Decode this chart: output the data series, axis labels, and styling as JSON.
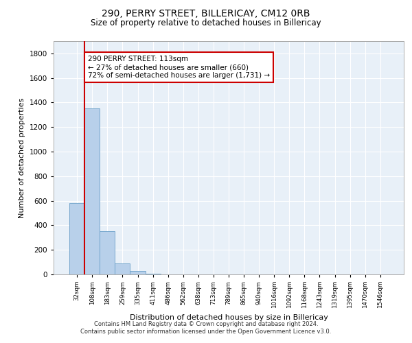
{
  "title": "290, PERRY STREET, BILLERICAY, CM12 0RB",
  "subtitle": "Size of property relative to detached houses in Billericay",
  "xlabel": "Distribution of detached houses by size in Billericay",
  "ylabel": "Number of detached properties",
  "bar_labels": [
    "32sqm",
    "108sqm",
    "183sqm",
    "259sqm",
    "335sqm",
    "411sqm",
    "486sqm",
    "562sqm",
    "638sqm",
    "713sqm",
    "789sqm",
    "865sqm",
    "940sqm",
    "1016sqm",
    "1092sqm",
    "1168sqm",
    "1243sqm",
    "1319sqm",
    "1395sqm",
    "1470sqm",
    "1546sqm"
  ],
  "bar_values": [
    580,
    1350,
    350,
    88,
    30,
    5,
    2,
    1,
    1,
    0,
    0,
    0,
    0,
    0,
    0,
    0,
    0,
    0,
    0,
    0,
    0
  ],
  "bar_color": "#b8d0ea",
  "bar_edge_color": "#6a9fc8",
  "background_color": "#e8f0f8",
  "grid_color": "#ffffff",
  "vline_color": "#cc0000",
  "annotation_text": "290 PERRY STREET: 113sqm\n← 27% of detached houses are smaller (660)\n72% of semi-detached houses are larger (1,731) →",
  "annotation_box_color": "#cc0000",
  "ylim": [
    0,
    1900
  ],
  "yticks": [
    0,
    200,
    400,
    600,
    800,
    1000,
    1200,
    1400,
    1600,
    1800
  ],
  "footer_line1": "Contains HM Land Registry data © Crown copyright and database right 2024.",
  "footer_line2": "Contains public sector information licensed under the Open Government Licence v3.0."
}
